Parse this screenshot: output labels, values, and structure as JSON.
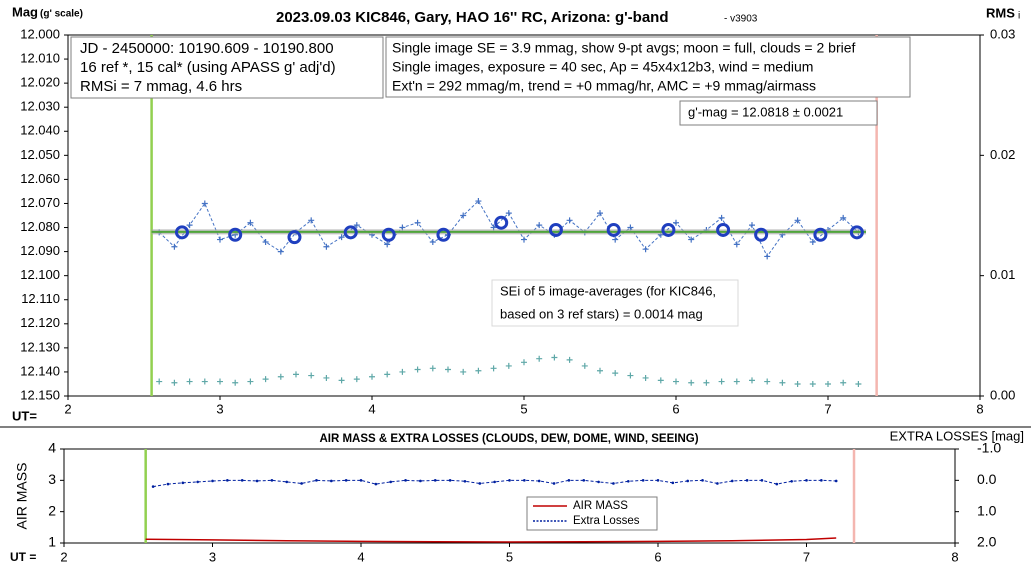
{
  "chart_data": [
    {
      "type": "line",
      "title": "2023.09.03 KIC846, Gary, HAO 16'' RC, Arizona: g'-band",
      "subtitle": "- v3903",
      "y_label": "Mag",
      "y_label_note": "(g' scale)",
      "y2_label": "RMS",
      "y2_label_sub": "i",
      "x_label": "UT=",
      "xlim": [
        2,
        8
      ],
      "xticks": [
        2,
        3,
        4,
        5,
        6,
        7,
        8
      ],
      "ylim": [
        12.15,
        12.0
      ],
      "yticks": [
        {
          "value": 12.0,
          "label": "12.000"
        },
        {
          "value": 12.01,
          "label": "12.010"
        },
        {
          "value": 12.02,
          "label": "12.020"
        },
        {
          "value": 12.03,
          "label": "12.030"
        },
        {
          "value": 12.04,
          "label": "12.040"
        },
        {
          "value": 12.05,
          "label": "12.050"
        },
        {
          "value": 12.06,
          "label": "12.060"
        },
        {
          "value": 12.07,
          "label": "12.070"
        },
        {
          "value": 12.08,
          "label": "12.080"
        },
        {
          "value": 12.09,
          "label": "12.090"
        },
        {
          "value": 12.1,
          "label": "12.100"
        },
        {
          "value": 12.11,
          "label": "12.110"
        },
        {
          "value": 12.12,
          "label": "12.120"
        },
        {
          "value": 12.13,
          "label": "12.130"
        },
        {
          "value": 12.14,
          "label": "12.140"
        },
        {
          "value": 12.15,
          "label": "12.150"
        }
      ],
      "y2lim": [
        0,
        0.03
      ],
      "y2ticks": [
        {
          "value": 0,
          "label": "0.00"
        },
        0.01,
        0.02,
        0.03
      ],
      "vlines": [
        {
          "x": 2.55,
          "color": "#92d050"
        },
        {
          "x": 7.32,
          "color": "#f4b6b0"
        }
      ],
      "series": [
        {
          "color": "#4472c4",
          "line": "dashed",
          "marker": "plus",
          "x": [
            2.6,
            2.7,
            2.8,
            2.9,
            3.0,
            3.1,
            3.2,
            3.3,
            3.4,
            3.5,
            3.6,
            3.7,
            3.8,
            3.9,
            4.0,
            4.1,
            4.2,
            4.3,
            4.4,
            4.5,
            4.6,
            4.7,
            4.8,
            4.9,
            5.0,
            5.1,
            5.2,
            5.3,
            5.4,
            5.5,
            5.6,
            5.7,
            5.8,
            5.9,
            6.0,
            6.1,
            6.2,
            6.3,
            6.4,
            6.5,
            6.6,
            6.7,
            6.8,
            6.9,
            7.0,
            7.1,
            7.2
          ],
          "values": [
            12.082,
            12.088,
            12.079,
            12.07,
            12.085,
            12.083,
            12.078,
            12.086,
            12.09,
            12.082,
            12.077,
            12.088,
            12.084,
            12.079,
            12.083,
            12.087,
            12.08,
            12.078,
            12.086,
            12.083,
            12.075,
            12.069,
            12.08,
            12.074,
            12.085,
            12.079,
            12.083,
            12.077,
            12.082,
            12.074,
            12.085,
            12.08,
            12.089,
            12.083,
            12.078,
            12.085,
            12.081,
            12.076,
            12.087,
            12.079,
            12.092,
            12.083,
            12.077,
            12.086,
            12.081,
            12.076,
            12.082
          ]
        },
        {
          "color": "#a6a6a6",
          "line": "mean",
          "marker": "none",
          "x": [
            2.55,
            7.25
          ],
          "values": [
            12.0818,
            12.0818
          ]
        },
        {
          "color": "#1f3fbf",
          "line": "none",
          "marker": "circle",
          "x": [
            2.75,
            3.1,
            3.49,
            3.86,
            4.11,
            4.47,
            4.85,
            5.21,
            5.59,
            5.95,
            6.31,
            6.56,
            6.95,
            7.19
          ],
          "values": [
            12.082,
            12.083,
            12.084,
            12.082,
            12.083,
            12.083,
            12.078,
            12.081,
            12.081,
            12.081,
            12.081,
            12.083,
            12.083,
            12.082
          ]
        },
        {
          "color": "#5fa8a8",
          "line": "none",
          "marker": "plus",
          "axis": "y2",
          "x": [
            2.6,
            2.7,
            2.8,
            2.9,
            3.0,
            3.1,
            3.2,
            3.3,
            3.4,
            3.5,
            3.6,
            3.7,
            3.8,
            3.9,
            4.0,
            4.1,
            4.2,
            4.3,
            4.4,
            4.5,
            4.6,
            4.7,
            4.8,
            4.9,
            5.0,
            5.1,
            5.2,
            5.3,
            5.4,
            5.5,
            5.6,
            5.7,
            5.8,
            5.9,
            6.0,
            6.1,
            6.2,
            6.3,
            6.4,
            6.5,
            6.6,
            6.7,
            6.8,
            6.9,
            7.0,
            7.1,
            7.2
          ],
          "values": [
            0.0012,
            0.0011,
            0.0012,
            0.0012,
            0.0012,
            0.0011,
            0.0012,
            0.0014,
            0.0016,
            0.0018,
            0.0017,
            0.0015,
            0.0013,
            0.0014,
            0.0016,
            0.0018,
            0.002,
            0.0022,
            0.0023,
            0.0022,
            0.002,
            0.0021,
            0.0023,
            0.0025,
            0.0028,
            0.0031,
            0.0032,
            0.003,
            0.0025,
            0.0021,
            0.0019,
            0.0017,
            0.0015,
            0.0013,
            0.0012,
            0.0011,
            0.0011,
            0.0012,
            0.0012,
            0.0013,
            0.0012,
            0.0011,
            0.001,
            0.001,
            0.001,
            0.0011,
            0.001
          ]
        }
      ],
      "annotations": [
        {
          "lines": [
            "JD - 2450000: 10190.609 - 10190.800",
            "16 ref *, 15 cal* (using APASS g' adj'd)",
            "RMSi = 7 mmag, 4.6 hrs"
          ]
        },
        {
          "lines": [
            "Single image SE = 3.9 mmag, show  9-pt avgs; moon = full, clouds = 2 brief",
            "Single images, exposure = 40 sec, Ap = 45x4x12b3, wind = medium",
            "Ext'n = 292 mmag/m, trend = +0 mmag/hr, AMC = +9 mmag/airmass"
          ]
        },
        {
          "lines": [
            "g'-mag = 12.0818 ± 0.0021"
          ]
        },
        {
          "lines": [
            "SEi of 5 image-averages (for KIC846,",
            "based on 3 ref stars) = 0.0014 mag"
          ]
        }
      ]
    },
    {
      "type": "line",
      "title": "AIR MASS & EXTRA LOSSES (CLOUDS, DEW, DOME, WIND, SEEING)",
      "y_label": "AIR MASS",
      "y2_label": "EXTRA LOSSES [mag]",
      "x_label": "UT =",
      "xlim": [
        2,
        8
      ],
      "xticks": [
        2,
        3,
        4,
        5,
        6,
        7,
        8
      ],
      "ylim": [
        1,
        4
      ],
      "yticks": [
        1,
        2,
        3,
        4
      ],
      "y2lim": [
        2,
        -1
      ],
      "y2ticks": [
        {
          "value": -1,
          "label": "-1.0"
        },
        {
          "value": 0,
          "label": "0.0"
        },
        {
          "value": 1,
          "label": "1.0"
        },
        {
          "value": 2,
          "label": "2.0"
        }
      ],
      "vlines": [
        {
          "x": 2.55,
          "color": "#92d050"
        },
        {
          "x": 7.32,
          "color": "#f4b6b0"
        }
      ],
      "legend": "center",
      "series": [
        {
          "name": "AIR MASS",
          "color": "#c00000",
          "line": "solid",
          "marker": "none",
          "x": [
            2.55,
            3.0,
            3.5,
            4.0,
            4.5,
            5.0,
            5.5,
            6.0,
            6.5,
            7.0,
            7.2
          ],
          "values": [
            1.12,
            1.1,
            1.07,
            1.05,
            1.04,
            1.03,
            1.04,
            1.05,
            1.07,
            1.11,
            1.16
          ]
        },
        {
          "name": "Extra Losses",
          "color": "#0020a0",
          "line": "dashed",
          "marker": "dot",
          "axis": "y2",
          "x": [
            2.6,
            2.7,
            2.8,
            2.9,
            3.0,
            3.1,
            3.2,
            3.3,
            3.4,
            3.5,
            3.6,
            3.7,
            3.8,
            3.9,
            4.0,
            4.1,
            4.2,
            4.3,
            4.4,
            4.5,
            4.6,
            4.7,
            4.8,
            4.9,
            5.0,
            5.1,
            5.2,
            5.3,
            5.4,
            5.5,
            5.6,
            5.7,
            5.8,
            5.9,
            6.0,
            6.1,
            6.2,
            6.3,
            6.4,
            6.5,
            6.6,
            6.7,
            6.8,
            6.9,
            7.0,
            7.1,
            7.2
          ],
          "values": [
            0.2,
            0.12,
            0.08,
            0.05,
            0.02,
            0,
            0,
            0.02,
            0,
            0.05,
            0.1,
            0,
            0.02,
            0,
            0,
            0.12,
            0.05,
            0,
            0.02,
            0,
            0,
            0.03,
            0.1,
            0.05,
            0,
            0,
            0.02,
            0.1,
            0,
            0,
            0.05,
            0.1,
            0.03,
            0,
            0,
            0.08,
            0.02,
            0,
            0.1,
            0.02,
            0,
            0,
            0.12,
            0.03,
            0,
            0,
            0.02
          ]
        }
      ]
    }
  ]
}
